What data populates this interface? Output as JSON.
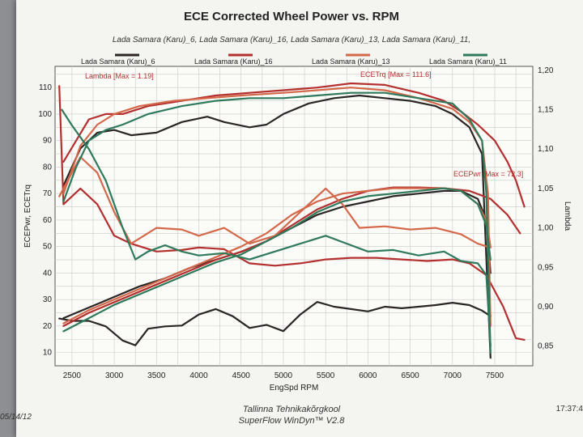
{
  "chart_data": {
    "type": "line",
    "title": "ECE Corrected Wheel Power vs. RPM",
    "subtitle": "Lada Samara (Karu)_6, Lada Samara (Karu)_16, Lada Samara (Karu)_13, Lada Samara (Karu)_11,",
    "xlabel": "EngSpd  RPM",
    "ylabel_left": "ECEPwr, ECETrq",
    "ylabel_right": "Lambda",
    "xlim": [
      2300,
      7950
    ],
    "ylim_left": [
      5,
      118
    ],
    "ylim_right": [
      0.825,
      1.205
    ],
    "x_ticks": [
      2500,
      3000,
      3500,
      4000,
      4500,
      5000,
      5500,
      6000,
      6500,
      7000,
      7500
    ],
    "x_tick_labels": [
      "2500",
      "3000",
      "3500",
      "4000",
      "4500",
      "5000",
      "5500",
      "6000",
      "6500",
      "7000",
      "7500"
    ],
    "y_left_ticks": [
      10,
      20,
      30,
      40,
      50,
      60,
      70,
      80,
      90,
      100,
      110
    ],
    "y_left_tick_labels": [
      "10",
      "20",
      "30",
      "40",
      "50",
      "60",
      "70",
      "80",
      "90",
      "100",
      "110"
    ],
    "y_right_ticks": [
      0.85,
      0.9,
      0.95,
      1.0,
      1.05,
      1.1,
      1.15,
      1.2
    ],
    "y_right_tick_labels": [
      "0,85",
      "0,90",
      "0,95",
      "1,00",
      "1,05",
      "1,10",
      "1,15",
      "1,20"
    ],
    "grid": true,
    "legend_position": "top",
    "annotations": {
      "lambda_max": "Lambda [Max = 1.19]",
      "ecetrq_max": "ECETrq [Max = 111.6]",
      "ecepwr_max": "ECEPwr [Max = 72.3]"
    },
    "series": [
      {
        "name": "Lada Samara (Karu)_6",
        "color": "#2a2626",
        "torque": [
          [
            2400,
            73
          ],
          [
            2600,
            87
          ],
          [
            2800,
            93
          ],
          [
            3000,
            94
          ],
          [
            3200,
            92
          ],
          [
            3500,
            93
          ],
          [
            3800,
            97
          ],
          [
            4100,
            99
          ],
          [
            4300,
            97
          ],
          [
            4600,
            95
          ],
          [
            4800,
            96
          ],
          [
            5000,
            100
          ],
          [
            5300,
            104
          ],
          [
            5600,
            106
          ],
          [
            5900,
            107
          ],
          [
            6200,
            106
          ],
          [
            6500,
            105
          ],
          [
            6800,
            103
          ],
          [
            7000,
            100
          ],
          [
            7200,
            95
          ],
          [
            7350,
            85
          ],
          [
            7420,
            30
          ],
          [
            7450,
            8
          ]
        ],
        "power": [
          [
            2400,
            23
          ],
          [
            2700,
            27
          ],
          [
            3000,
            31
          ],
          [
            3300,
            35
          ],
          [
            3600,
            38
          ],
          [
            3900,
            42
          ],
          [
            4200,
            45
          ],
          [
            4500,
            48
          ],
          [
            4800,
            52
          ],
          [
            5100,
            57
          ],
          [
            5400,
            62
          ],
          [
            5700,
            65
          ],
          [
            6000,
            67
          ],
          [
            6300,
            69
          ],
          [
            6600,
            70
          ],
          [
            6900,
            71
          ],
          [
            7100,
            71
          ],
          [
            7300,
            68
          ],
          [
            7400,
            60
          ],
          [
            7450,
            40
          ]
        ],
        "lambda": [
          [
            2350,
            0.885
          ],
          [
            2500,
            0.882
          ],
          [
            2700,
            0.882
          ],
          [
            2900,
            0.875
          ],
          [
            3100,
            0.857
          ],
          [
            3250,
            0.851
          ],
          [
            3400,
            0.872
          ],
          [
            3600,
            0.875
          ],
          [
            3800,
            0.876
          ],
          [
            4000,
            0.89
          ],
          [
            4200,
            0.897
          ],
          [
            4400,
            0.888
          ],
          [
            4600,
            0.873
          ],
          [
            4800,
            0.877
          ],
          [
            5000,
            0.869
          ],
          [
            5200,
            0.89
          ],
          [
            5400,
            0.906
          ],
          [
            5600,
            0.9
          ],
          [
            5800,
            0.897
          ],
          [
            6000,
            0.894
          ],
          [
            6200,
            0.9
          ],
          [
            6400,
            0.898
          ],
          [
            6600,
            0.9
          ],
          [
            6800,
            0.902
          ],
          [
            7000,
            0.905
          ],
          [
            7200,
            0.902
          ],
          [
            7350,
            0.895
          ],
          [
            7450,
            0.888
          ]
        ]
      },
      {
        "name": "Lada Samara (Karu)_16",
        "color": "#b3302f",
        "torque": [
          [
            2400,
            82
          ],
          [
            2550,
            90
          ],
          [
            2700,
            98
          ],
          [
            2900,
            100
          ],
          [
            3100,
            100
          ],
          [
            3400,
            103
          ],
          [
            3800,
            105
          ],
          [
            4200,
            107
          ],
          [
            4600,
            108
          ],
          [
            5000,
            109
          ],
          [
            5400,
            110
          ],
          [
            5800,
            111.6
          ],
          [
            6200,
            111
          ],
          [
            6600,
            108
          ],
          [
            6900,
            105
          ],
          [
            7100,
            101
          ],
          [
            7300,
            96
          ],
          [
            7500,
            90
          ],
          [
            7650,
            82
          ],
          [
            7750,
            75
          ],
          [
            7850,
            65
          ]
        ],
        "power": [
          [
            2400,
            20
          ],
          [
            2700,
            25
          ],
          [
            3000,
            29
          ],
          [
            3300,
            33
          ],
          [
            3600,
            37
          ],
          [
            3900,
            41
          ],
          [
            4200,
            45
          ],
          [
            4500,
            48
          ],
          [
            4800,
            52
          ],
          [
            5100,
            58
          ],
          [
            5400,
            64
          ],
          [
            5700,
            68
          ],
          [
            6000,
            71
          ],
          [
            6300,
            72.3
          ],
          [
            6600,
            72.3
          ],
          [
            6900,
            72
          ],
          [
            7200,
            71
          ],
          [
            7450,
            68
          ],
          [
            7650,
            62
          ],
          [
            7800,
            55
          ]
        ],
        "lambda": [
          [
            2350,
            1.18
          ],
          [
            2400,
            1.03
          ],
          [
            2600,
            1.05
          ],
          [
            2800,
            1.03
          ],
          [
            3000,
            0.99
          ],
          [
            3200,
            0.98
          ],
          [
            3500,
            0.97
          ],
          [
            3800,
            0.972
          ],
          [
            4000,
            0.975
          ],
          [
            4300,
            0.973
          ],
          [
            4600,
            0.955
          ],
          [
            4900,
            0.952
          ],
          [
            5200,
            0.955
          ],
          [
            5500,
            0.96
          ],
          [
            5800,
            0.962
          ],
          [
            6100,
            0.962
          ],
          [
            6400,
            0.96
          ],
          [
            6700,
            0.958
          ],
          [
            7000,
            0.96
          ],
          [
            7200,
            0.955
          ],
          [
            7400,
            0.94
          ],
          [
            7600,
            0.9
          ],
          [
            7750,
            0.86
          ],
          [
            7850,
            0.858
          ]
        ]
      },
      {
        "name": "Lada Samara (Karu)_13",
        "color": "#d3684a",
        "torque": [
          [
            2400,
            70
          ],
          [
            2600,
            88
          ],
          [
            2800,
            96
          ],
          [
            3000,
            100
          ],
          [
            3300,
            103
          ],
          [
            3700,
            105
          ],
          [
            4100,
            106
          ],
          [
            4500,
            107
          ],
          [
            5000,
            108
          ],
          [
            5400,
            109
          ],
          [
            5800,
            110
          ],
          [
            6200,
            109
          ],
          [
            6600,
            106
          ],
          [
            7000,
            102
          ],
          [
            7200,
            97
          ],
          [
            7350,
            90
          ],
          [
            7420,
            70
          ],
          [
            7450,
            20
          ]
        ],
        "power": [
          [
            2400,
            21
          ],
          [
            2700,
            26
          ],
          [
            3000,
            30
          ],
          [
            3300,
            34
          ],
          [
            3600,
            38
          ],
          [
            3900,
            42
          ],
          [
            4200,
            46
          ],
          [
            4500,
            50
          ],
          [
            4800,
            55
          ],
          [
            5100,
            62
          ],
          [
            5400,
            67
          ],
          [
            5700,
            70
          ],
          [
            6000,
            71
          ],
          [
            6300,
            72
          ],
          [
            6600,
            72
          ],
          [
            6900,
            72
          ],
          [
            7100,
            71
          ],
          [
            7300,
            66
          ],
          [
            7400,
            60
          ],
          [
            7450,
            50
          ]
        ],
        "lambda": [
          [
            2350,
            1.04
          ],
          [
            2600,
            1.09
          ],
          [
            2800,
            1.07
          ],
          [
            3000,
            1.02
          ],
          [
            3200,
            0.98
          ],
          [
            3500,
            1.0
          ],
          [
            3800,
            0.998
          ],
          [
            4000,
            0.99
          ],
          [
            4300,
            1.0
          ],
          [
            4600,
            0.98
          ],
          [
            4900,
            0.99
          ],
          [
            5200,
            1.02
          ],
          [
            5500,
            1.05
          ],
          [
            5700,
            1.03
          ],
          [
            5900,
            1.0
          ],
          [
            6200,
            1.002
          ],
          [
            6500,
            0.998
          ],
          [
            6800,
            1.0
          ],
          [
            7100,
            0.992
          ],
          [
            7300,
            0.98
          ],
          [
            7450,
            0.975
          ]
        ]
      },
      {
        "name": "Lada Samara (Karu)_11",
        "color": "#2f7a5b",
        "torque": [
          [
            2400,
            67
          ],
          [
            2550,
            80
          ],
          [
            2700,
            90
          ],
          [
            2900,
            94
          ],
          [
            3100,
            96
          ],
          [
            3400,
            100
          ],
          [
            3800,
            103
          ],
          [
            4200,
            105
          ],
          [
            4600,
            106
          ],
          [
            5000,
            106
          ],
          [
            5400,
            107
          ],
          [
            5800,
            108
          ],
          [
            6200,
            108
          ],
          [
            6600,
            106
          ],
          [
            7000,
            104
          ],
          [
            7200,
            98
          ],
          [
            7350,
            90
          ],
          [
            7400,
            70
          ],
          [
            7450,
            10
          ]
        ],
        "power": [
          [
            2400,
            18
          ],
          [
            2700,
            23
          ],
          [
            3000,
            28
          ],
          [
            3300,
            32
          ],
          [
            3600,
            36
          ],
          [
            3900,
            40
          ],
          [
            4200,
            44
          ],
          [
            4500,
            47
          ],
          [
            4800,
            52
          ],
          [
            5100,
            57
          ],
          [
            5400,
            63
          ],
          [
            5700,
            67
          ],
          [
            6000,
            69
          ],
          [
            6300,
            70
          ],
          [
            6600,
            71
          ],
          [
            6900,
            72
          ],
          [
            7100,
            71
          ],
          [
            7300,
            66
          ],
          [
            7400,
            58
          ],
          [
            7450,
            45
          ]
        ],
        "lambda": [
          [
            2380,
            1.15
          ],
          [
            2500,
            1.13
          ],
          [
            2700,
            1.1
          ],
          [
            2900,
            1.06
          ],
          [
            3100,
            1.0
          ],
          [
            3250,
            0.96
          ],
          [
            3400,
            0.97
          ],
          [
            3600,
            0.978
          ],
          [
            3800,
            0.97
          ],
          [
            4000,
            0.965
          ],
          [
            4300,
            0.968
          ],
          [
            4600,
            0.96
          ],
          [
            4900,
            0.97
          ],
          [
            5200,
            0.98
          ],
          [
            5500,
            0.99
          ],
          [
            5700,
            0.982
          ],
          [
            6000,
            0.97
          ],
          [
            6300,
            0.972
          ],
          [
            6600,
            0.965
          ],
          [
            6900,
            0.97
          ],
          [
            7100,
            0.958
          ],
          [
            7300,
            0.955
          ],
          [
            7400,
            0.94
          ],
          [
            7450,
            0.85
          ]
        ]
      }
    ]
  },
  "footer": {
    "line1": "Tallinna Tehnikakõrgkool",
    "line2": "SuperFlow WinDyn™ V2.8",
    "date": "05/14/12",
    "time": "17:37:4"
  }
}
